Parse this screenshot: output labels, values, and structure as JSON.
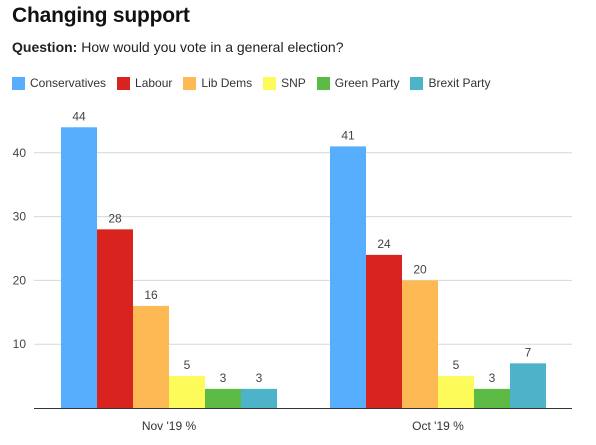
{
  "header": {
    "title": "Changing support",
    "question_label": "Question:",
    "question_text": "How would you vote in a general election?"
  },
  "chart_data": {
    "type": "bar",
    "title": "Changing support",
    "xlabel": "",
    "ylabel": "",
    "ylim": [
      0,
      45
    ],
    "yticks": [
      10,
      20,
      30,
      40
    ],
    "grid": true,
    "legend_position": "top",
    "categories": [
      "Nov '19 %",
      "Oct '19 %"
    ],
    "series": [
      {
        "name": "Conservatives",
        "color": "#57aefc",
        "values": [
          44,
          41
        ]
      },
      {
        "name": "Labour",
        "color": "#d9231f",
        "values": [
          28,
          24
        ]
      },
      {
        "name": "Lib Dems",
        "color": "#fdba54",
        "values": [
          16,
          20
        ]
      },
      {
        "name": "SNP",
        "color": "#fdfb59",
        "values": [
          5,
          5
        ]
      },
      {
        "name": "Green Party",
        "color": "#5dbb45",
        "values": [
          3,
          3
        ]
      },
      {
        "name": "Brexit Party",
        "color": "#4cb3c8",
        "values": [
          3,
          7
        ]
      }
    ]
  }
}
